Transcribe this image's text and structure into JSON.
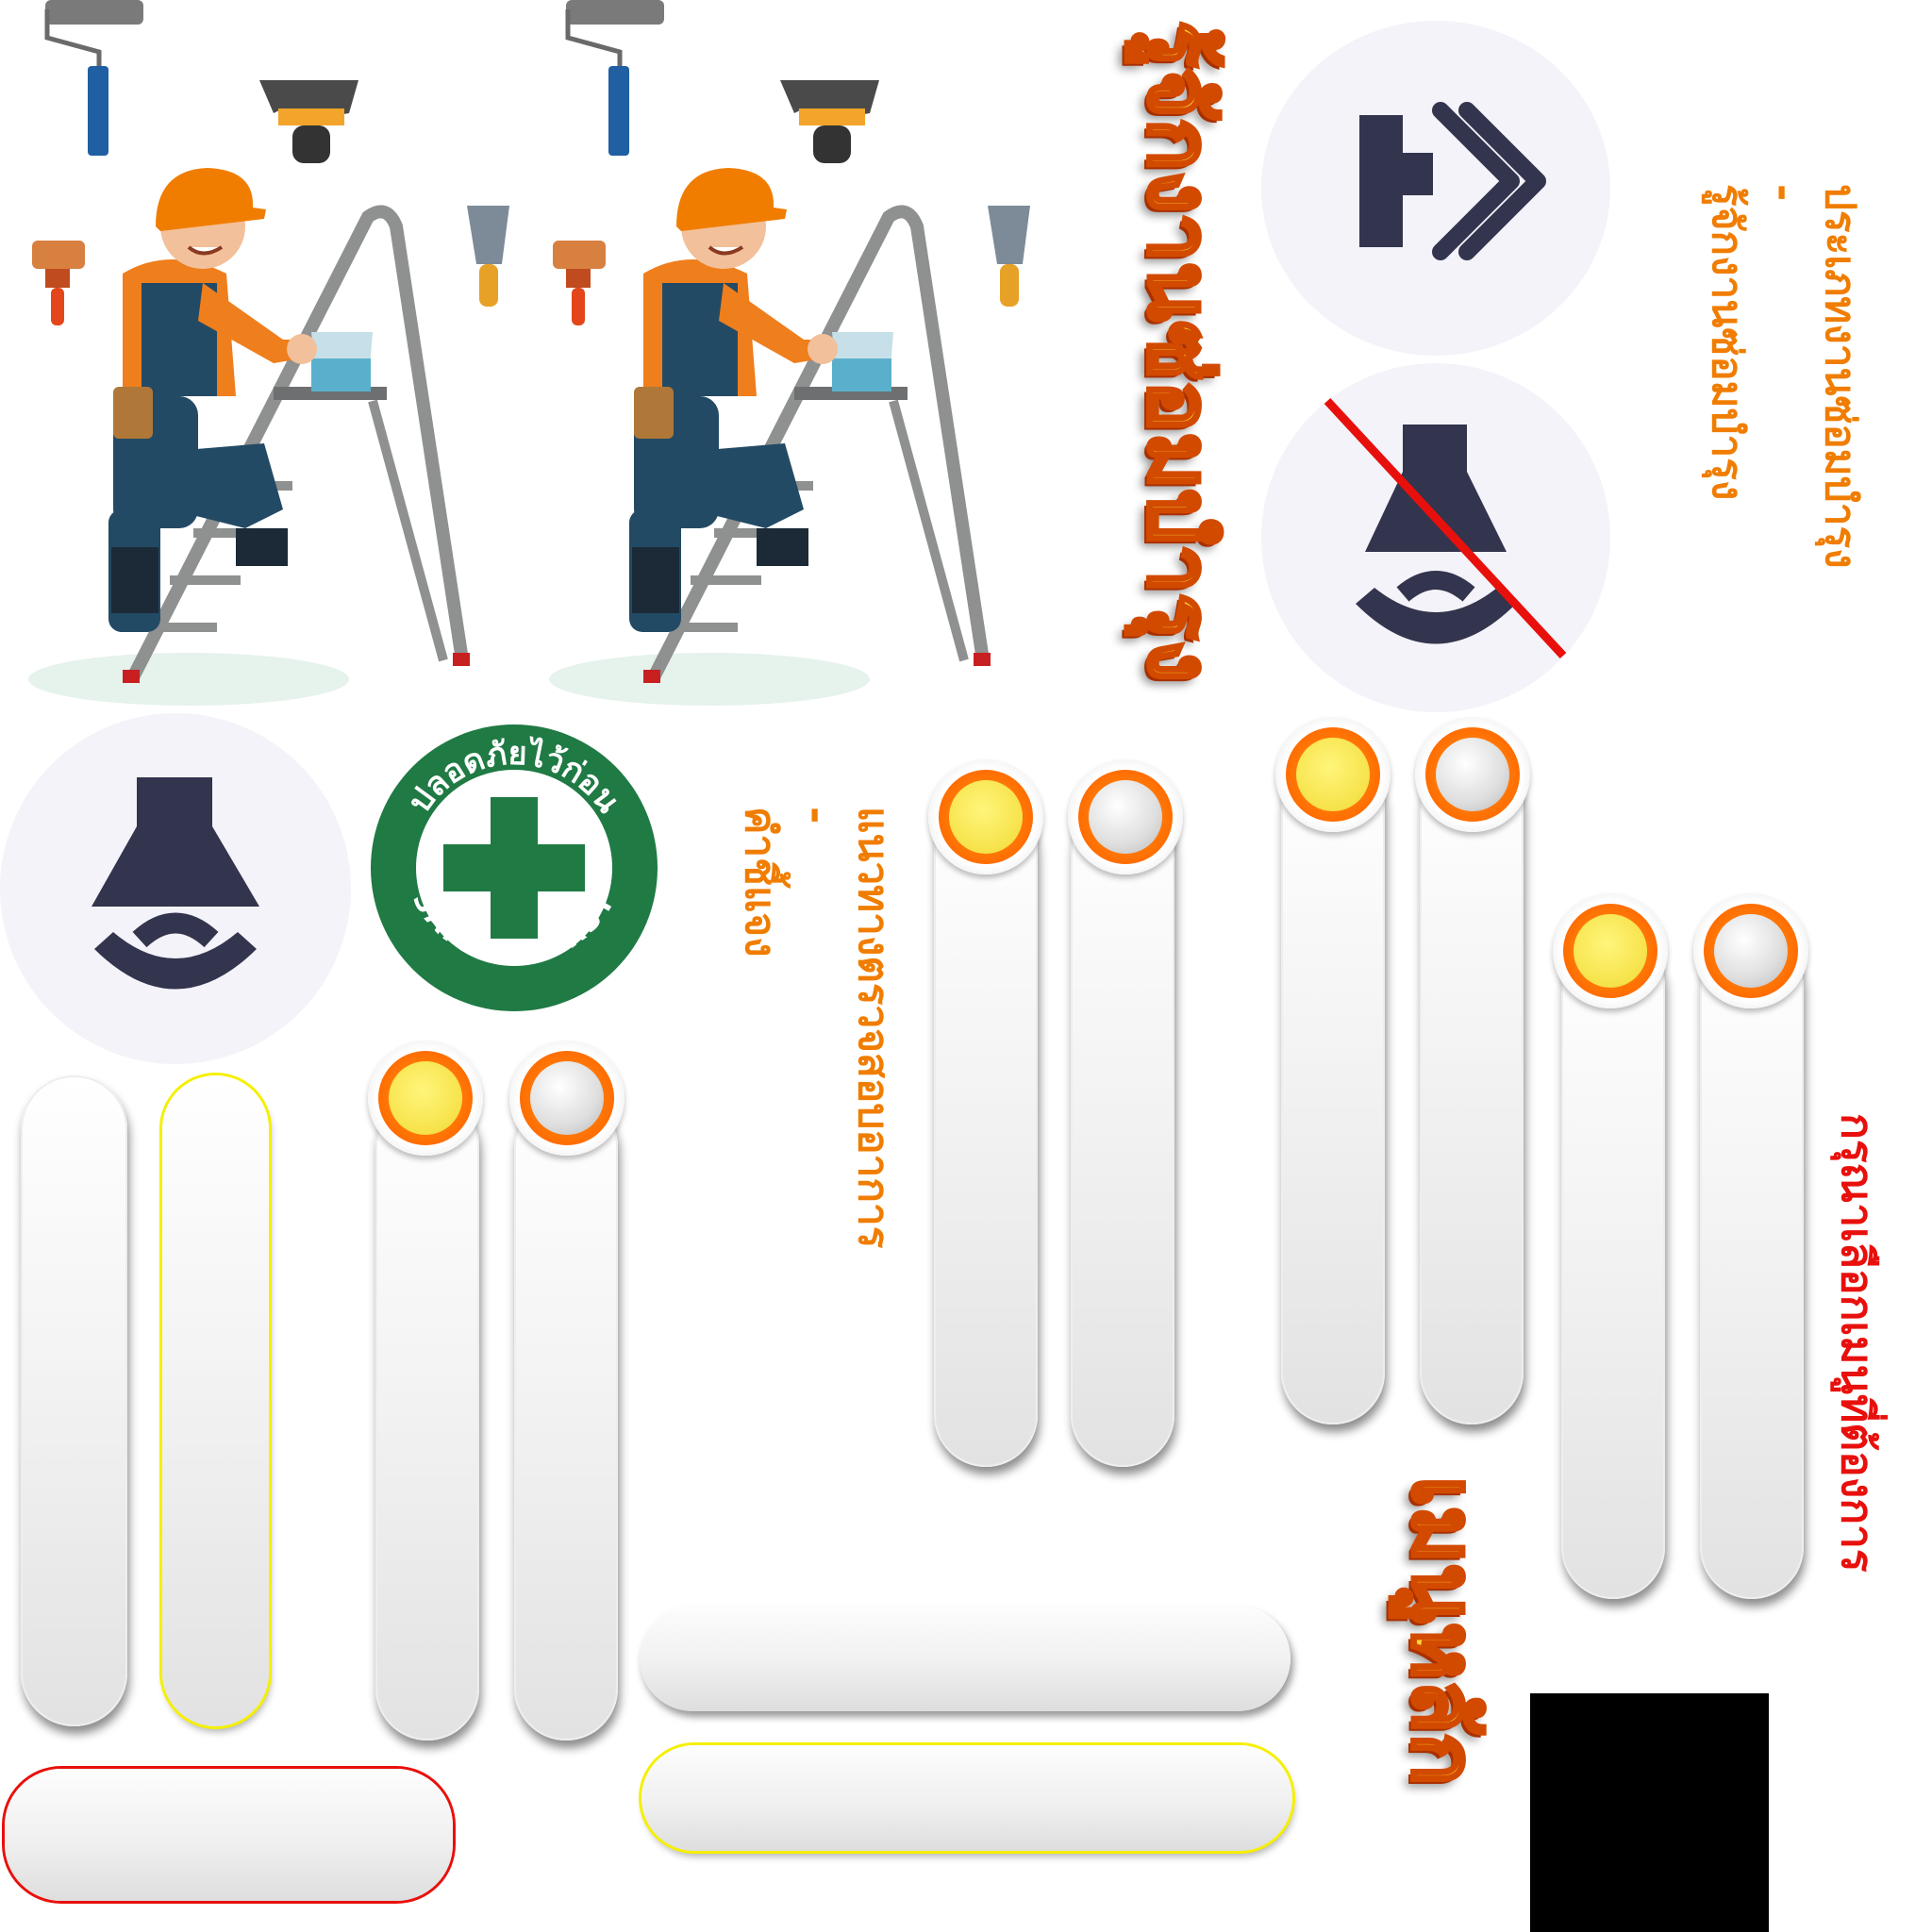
{
  "safety_badge": {
    "thai": "ปลอดภัยไว้ก่อน",
    "english": "SAFETY FIRST"
  },
  "titles": {
    "repair_types": "รู้จักงานซ่อมบำรุง",
    "main_menu": "เมนูหลัก"
  },
  "labels": {
    "maintenance_types": "ประเภทงานซ่อมบำรุง\n-\nรู้จักงานซ่อมบำรุง",
    "check_steps": "แนวทางตรวจสอบอาการ\n-\nคำชี้แจง",
    "select_menu": "กรุณาเลือกเมนูที่ต้องการ"
  },
  "icons": {
    "next": "double-chevron-right-icon",
    "sound_off": "bell-muted-icon",
    "sound_on": "bell-icon"
  },
  "knobs": [
    {
      "state": "on"
    },
    {
      "state": "off"
    },
    {
      "state": "on"
    },
    {
      "state": "off"
    },
    {
      "state": "on"
    },
    {
      "state": "off"
    },
    {
      "state": "on"
    },
    {
      "state": "off"
    }
  ],
  "colors": {
    "accent_orange": "#f07d00",
    "knob_on": "#f6e24a",
    "outline_yellow": "#f5f000",
    "outline_red": "#e8100c",
    "badge_green": "#1f7a44",
    "icon_navy": "#33344d"
  }
}
